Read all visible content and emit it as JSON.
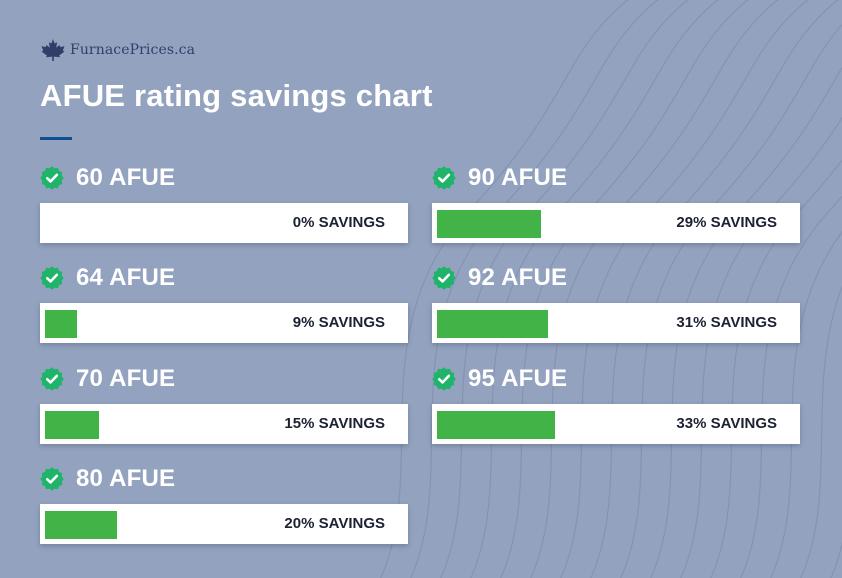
{
  "header": {
    "brand": "FurnacePrices.ca",
    "brand_icon": "maple-leaf-icon",
    "title": "AFUE rating savings chart"
  },
  "colors": {
    "background": "#93a3bf",
    "bar_fill": "#41b347",
    "check_badge": "#1fb46a",
    "accent_rule": "#0d4f93"
  },
  "chart_data": {
    "type": "bar",
    "orientation": "horizontal",
    "title": "AFUE rating savings chart",
    "unit": "% savings",
    "max_value": 100,
    "items": [
      {
        "label": "60 AFUE",
        "value": 0,
        "value_label": "0% SAVINGS"
      },
      {
        "label": "64 AFUE",
        "value": 9,
        "value_label": "9% SAVINGS"
      },
      {
        "label": "70 AFUE",
        "value": 15,
        "value_label": "15% SAVINGS"
      },
      {
        "label": "80 AFUE",
        "value": 20,
        "value_label": "20% SAVINGS"
      },
      {
        "label": "90 AFUE",
        "value": 29,
        "value_label": "29% SAVINGS"
      },
      {
        "label": "92 AFUE",
        "value": 31,
        "value_label": "31% SAVINGS"
      },
      {
        "label": "95 AFUE",
        "value": 33,
        "value_label": "33% SAVINGS"
      }
    ]
  }
}
